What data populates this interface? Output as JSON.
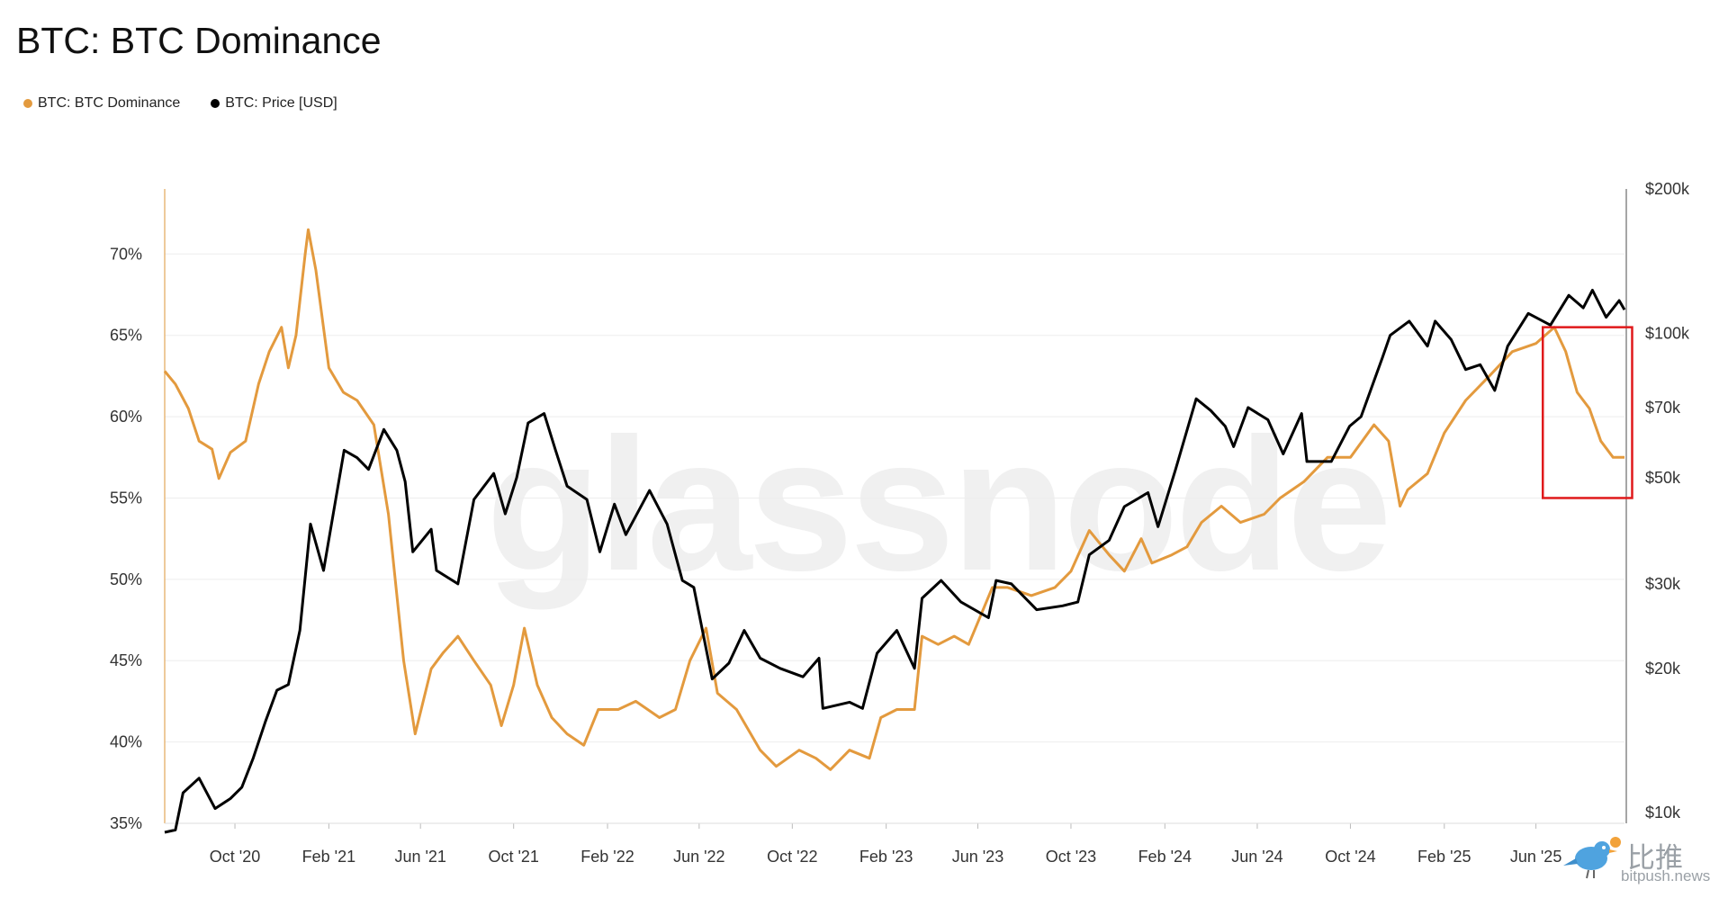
{
  "title": "BTC: BTC Dominance",
  "watermark": "glassnode",
  "brand": {
    "cn": "比推",
    "url": "bitpush.news"
  },
  "colors": {
    "dominance": "#E39A3E",
    "price": "#000000",
    "highlight": "#E0191B",
    "grid": "#EDEDED"
  },
  "chart_data": {
    "type": "line",
    "title": "BTC: BTC Dominance",
    "legend": [
      "BTC: BTC Dominance",
      "BTC: Price [USD]"
    ],
    "legend_position": "top-left",
    "grid": true,
    "x_ticks": [
      "Oct '20",
      "Feb '21",
      "Jun '21",
      "Oct '21",
      "Feb '22",
      "Jun '22",
      "Oct '22",
      "Feb '23",
      "Jun '23",
      "Oct '23",
      "Feb '24",
      "Jun '24",
      "Oct '24",
      "Feb '25",
      "Jun '25"
    ],
    "x_range": [
      "2020-07-01",
      "2025-09-25"
    ],
    "y_left": {
      "ticks": [
        "35%",
        "40%",
        "45%",
        "50%",
        "55%",
        "60%",
        "65%",
        "70%"
      ],
      "range": [
        35,
        74
      ]
    },
    "y_right": {
      "scale": "log",
      "ticks": [
        "$10k",
        "$20k",
        "$30k",
        "$50k",
        "$70k",
        "$100k",
        "$200k"
      ],
      "tick_values": [
        10000,
        20000,
        30000,
        50000,
        70000,
        100000,
        200000
      ],
      "range": [
        9500,
        200000
      ]
    },
    "series": [
      {
        "name": "BTC: BTC Dominance",
        "axis": "left",
        "color": "#E39A3E",
        "points": [
          [
            "2020-07-01",
            62.8
          ],
          [
            "2020-07-15",
            62.0
          ],
          [
            "2020-08-01",
            60.5
          ],
          [
            "2020-08-15",
            58.5
          ],
          [
            "2020-09-01",
            58.0
          ],
          [
            "2020-09-10",
            56.2
          ],
          [
            "2020-09-25",
            57.8
          ],
          [
            "2020-10-15",
            58.5
          ],
          [
            "2020-11-01",
            62.0
          ],
          [
            "2020-11-15",
            64.0
          ],
          [
            "2020-12-01",
            65.5
          ],
          [
            "2020-12-10",
            63.0
          ],
          [
            "2020-12-20",
            65.0
          ],
          [
            "2021-01-01",
            70.0
          ],
          [
            "2021-01-05",
            71.5
          ],
          [
            "2021-01-15",
            69.0
          ],
          [
            "2021-02-01",
            63.0
          ],
          [
            "2021-02-20",
            61.5
          ],
          [
            "2021-03-10",
            61.0
          ],
          [
            "2021-04-01",
            59.5
          ],
          [
            "2021-04-20",
            54.0
          ],
          [
            "2021-05-10",
            45.0
          ],
          [
            "2021-05-25",
            40.5
          ],
          [
            "2021-06-15",
            44.5
          ],
          [
            "2021-07-01",
            45.5
          ],
          [
            "2021-07-20",
            46.5
          ],
          [
            "2021-08-10",
            45.0
          ],
          [
            "2021-09-01",
            43.5
          ],
          [
            "2021-09-15",
            41.0
          ],
          [
            "2021-10-01",
            43.5
          ],
          [
            "2021-10-15",
            47.0
          ],
          [
            "2021-11-01",
            43.5
          ],
          [
            "2021-11-20",
            41.5
          ],
          [
            "2021-12-10",
            40.5
          ],
          [
            "2022-01-01",
            39.8
          ],
          [
            "2022-01-20",
            42.0
          ],
          [
            "2022-02-15",
            42.0
          ],
          [
            "2022-03-10",
            42.5
          ],
          [
            "2022-04-10",
            41.5
          ],
          [
            "2022-05-01",
            42.0
          ],
          [
            "2022-05-20",
            45.0
          ],
          [
            "2022-06-10",
            47.0
          ],
          [
            "2022-06-25",
            43.0
          ],
          [
            "2022-07-20",
            42.0
          ],
          [
            "2022-08-20",
            39.5
          ],
          [
            "2022-09-10",
            38.5
          ],
          [
            "2022-10-10",
            39.5
          ],
          [
            "2022-11-01",
            39.0
          ],
          [
            "2022-11-20",
            38.3
          ],
          [
            "2022-12-15",
            39.5
          ],
          [
            "2023-01-10",
            39.0
          ],
          [
            "2023-01-25",
            41.5
          ],
          [
            "2023-02-15",
            42.0
          ],
          [
            "2023-03-10",
            42.0
          ],
          [
            "2023-03-20",
            46.5
          ],
          [
            "2023-04-10",
            46.0
          ],
          [
            "2023-05-01",
            46.5
          ],
          [
            "2023-05-20",
            46.0
          ],
          [
            "2023-06-20",
            49.5
          ],
          [
            "2023-07-10",
            49.5
          ],
          [
            "2023-08-10",
            49.0
          ],
          [
            "2023-09-10",
            49.5
          ],
          [
            "2023-10-01",
            50.5
          ],
          [
            "2023-10-25",
            53.0
          ],
          [
            "2023-11-20",
            51.5
          ],
          [
            "2023-12-10",
            50.5
          ],
          [
            "2024-01-01",
            52.5
          ],
          [
            "2024-01-15",
            51.0
          ],
          [
            "2024-02-10",
            51.5
          ],
          [
            "2024-03-01",
            52.0
          ],
          [
            "2024-03-20",
            53.5
          ],
          [
            "2024-04-15",
            54.5
          ],
          [
            "2024-05-10",
            53.5
          ],
          [
            "2024-06-10",
            54.0
          ],
          [
            "2024-07-01",
            55.0
          ],
          [
            "2024-08-01",
            56.0
          ],
          [
            "2024-09-01",
            57.5
          ],
          [
            "2024-10-01",
            57.5
          ],
          [
            "2024-11-01",
            59.5
          ],
          [
            "2024-11-20",
            58.5
          ],
          [
            "2024-12-05",
            54.5
          ],
          [
            "2024-12-15",
            55.5
          ],
          [
            "2025-01-10",
            56.5
          ],
          [
            "2025-02-01",
            59.0
          ],
          [
            "2025-03-01",
            61.0
          ],
          [
            "2025-04-01",
            62.5
          ],
          [
            "2025-05-01",
            64.0
          ],
          [
            "2025-06-01",
            64.5
          ],
          [
            "2025-06-25",
            65.5
          ],
          [
            "2025-07-10",
            64.0
          ],
          [
            "2025-07-25",
            61.5
          ],
          [
            "2025-08-10",
            60.5
          ],
          [
            "2025-08-25",
            58.5
          ],
          [
            "2025-09-10",
            57.5
          ],
          [
            "2025-09-25",
            57.5
          ]
        ]
      },
      {
        "name": "BTC: Price [USD]",
        "axis": "right",
        "color": "#000000",
        "points": [
          [
            "2020-07-01",
            9100
          ],
          [
            "2020-07-15",
            9200
          ],
          [
            "2020-07-25",
            11000
          ],
          [
            "2020-08-15",
            11800
          ],
          [
            "2020-09-05",
            10200
          ],
          [
            "2020-09-25",
            10700
          ],
          [
            "2020-10-10",
            11300
          ],
          [
            "2020-10-25",
            13000
          ],
          [
            "2020-11-10",
            15500
          ],
          [
            "2020-11-25",
            18000
          ],
          [
            "2020-12-10",
            18500
          ],
          [
            "2020-12-25",
            24000
          ],
          [
            "2021-01-08",
            40000
          ],
          [
            "2021-01-25",
            32000
          ],
          [
            "2021-02-10",
            45000
          ],
          [
            "2021-02-21",
            57000
          ],
          [
            "2021-03-10",
            55000
          ],
          [
            "2021-03-25",
            52000
          ],
          [
            "2021-04-14",
            63000
          ],
          [
            "2021-05-01",
            57000
          ],
          [
            "2021-05-12",
            49000
          ],
          [
            "2021-05-22",
            35000
          ],
          [
            "2021-06-15",
            39000
          ],
          [
            "2021-06-22",
            32000
          ],
          [
            "2021-07-20",
            30000
          ],
          [
            "2021-08-10",
            45000
          ],
          [
            "2021-09-05",
            51000
          ],
          [
            "2021-09-20",
            42000
          ],
          [
            "2021-10-05",
            50000
          ],
          [
            "2021-10-20",
            65000
          ],
          [
            "2021-11-10",
            68000
          ],
          [
            "2021-11-25",
            57000
          ],
          [
            "2021-12-10",
            48000
          ],
          [
            "2022-01-05",
            45000
          ],
          [
            "2022-01-22",
            35000
          ],
          [
            "2022-02-10",
            44000
          ],
          [
            "2022-02-25",
            38000
          ],
          [
            "2022-03-28",
            47000
          ],
          [
            "2022-04-20",
            40000
          ],
          [
            "2022-05-10",
            30500
          ],
          [
            "2022-05-25",
            29500
          ],
          [
            "2022-06-18",
            19000
          ],
          [
            "2022-07-10",
            20500
          ],
          [
            "2022-07-30",
            24000
          ],
          [
            "2022-08-20",
            21000
          ],
          [
            "2022-09-15",
            20000
          ],
          [
            "2022-10-15",
            19200
          ],
          [
            "2022-11-05",
            21000
          ],
          [
            "2022-11-10",
            16500
          ],
          [
            "2022-12-15",
            17000
          ],
          [
            "2023-01-01",
            16500
          ],
          [
            "2023-01-20",
            21500
          ],
          [
            "2023-02-15",
            24000
          ],
          [
            "2023-03-10",
            20000
          ],
          [
            "2023-03-20",
            28000
          ],
          [
            "2023-04-14",
            30500
          ],
          [
            "2023-05-10",
            27500
          ],
          [
            "2023-06-15",
            25500
          ],
          [
            "2023-06-25",
            30500
          ],
          [
            "2023-07-15",
            30000
          ],
          [
            "2023-08-17",
            26500
          ],
          [
            "2023-09-20",
            27000
          ],
          [
            "2023-10-10",
            27500
          ],
          [
            "2023-10-25",
            34500
          ],
          [
            "2023-11-20",
            37000
          ],
          [
            "2023-12-10",
            43500
          ],
          [
            "2024-01-10",
            46500
          ],
          [
            "2024-01-23",
            39500
          ],
          [
            "2024-02-15",
            52000
          ],
          [
            "2024-03-13",
            73000
          ],
          [
            "2024-04-01",
            69000
          ],
          [
            "2024-04-20",
            64000
          ],
          [
            "2024-05-01",
            58000
          ],
          [
            "2024-05-20",
            70000
          ],
          [
            "2024-06-15",
            66000
          ],
          [
            "2024-07-05",
            56000
          ],
          [
            "2024-07-29",
            68000
          ],
          [
            "2024-08-05",
            54000
          ],
          [
            "2024-09-06",
            54000
          ],
          [
            "2024-09-30",
            64000
          ],
          [
            "2024-10-15",
            67000
          ],
          [
            "2024-11-12",
            89000
          ],
          [
            "2024-11-22",
            99000
          ],
          [
            "2024-12-17",
            106000
          ],
          [
            "2025-01-10",
            94000
          ],
          [
            "2025-01-20",
            106000
          ],
          [
            "2025-02-10",
            97000
          ],
          [
            "2025-03-01",
            84000
          ],
          [
            "2025-03-20",
            86000
          ],
          [
            "2025-04-08",
            76000
          ],
          [
            "2025-04-25",
            94000
          ],
          [
            "2025-05-22",
            110000
          ],
          [
            "2025-06-20",
            104000
          ],
          [
            "2025-07-14",
            120000
          ],
          [
            "2025-08-02",
            113000
          ],
          [
            "2025-08-14",
            123000
          ],
          [
            "2025-09-01",
            108000
          ],
          [
            "2025-09-18",
            117000
          ],
          [
            "2025-09-25",
            112000
          ]
        ]
      }
    ],
    "annotations": [
      {
        "type": "highlight-box",
        "color": "#E0191B",
        "x_range": [
          "2025-06-10",
          "2025-10-05"
        ],
        "y_range_left": [
          55,
          65.5
        ]
      }
    ]
  }
}
